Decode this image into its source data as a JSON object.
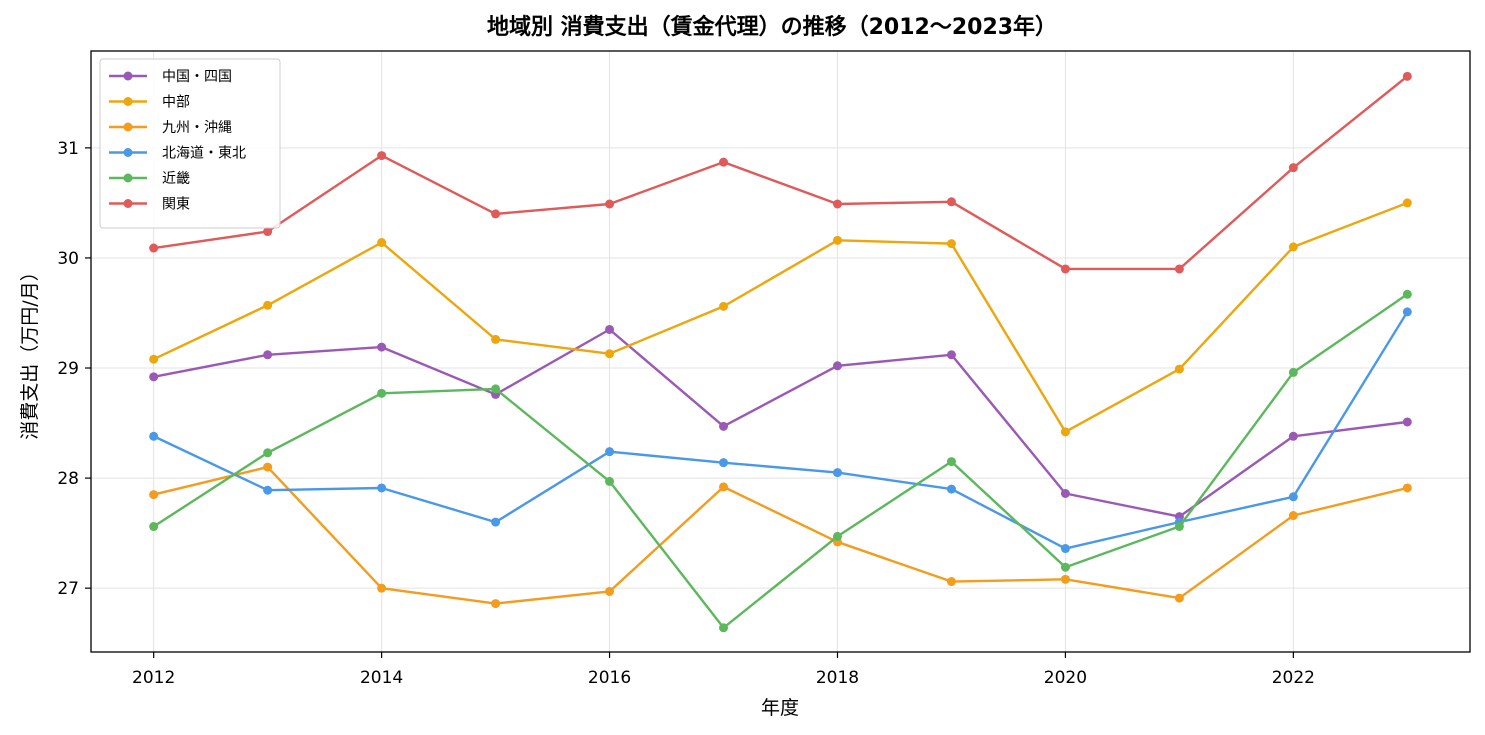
{
  "chart_data": {
    "type": "line",
    "title": "地域別 消費支出（賃金代理）の推移（2012〜2023年）",
    "xlabel": "年度",
    "ylabel": "消費支出（万円/月）",
    "xlim": [
      2011.45,
      2023.55
    ],
    "ylim": [
      26.42,
      31.88
    ],
    "xticks": [
      2012,
      2014,
      2016,
      2018,
      2020,
      2022
    ],
    "yticks": [
      27,
      28,
      29,
      30,
      31
    ],
    "grid": true,
    "legend_position": "top-left",
    "x": [
      2012,
      2013,
      2014,
      2015,
      2016,
      2017,
      2018,
      2019,
      2020,
      2021,
      2022,
      2023
    ],
    "series": [
      {
        "name": "中国・四国",
        "color": "#9b59b6",
        "values": [
          28.92,
          29.12,
          29.19,
          28.76,
          29.35,
          28.47,
          29.02,
          29.12,
          27.86,
          27.65,
          28.38,
          28.51
        ]
      },
      {
        "name": "中部",
        "color": "#eda60c",
        "values": [
          29.08,
          29.57,
          30.14,
          29.26,
          29.13,
          29.56,
          30.16,
          30.13,
          28.42,
          28.99,
          30.1,
          30.5
        ]
      },
      {
        "name": "九州・沖縄",
        "color": "#f39c1d",
        "values": [
          27.85,
          28.1,
          27.0,
          26.86,
          26.97,
          27.92,
          27.42,
          27.06,
          27.08,
          26.91,
          27.66,
          27.91
        ]
      },
      {
        "name": "北海道・東北",
        "color": "#4a98e8",
        "values": [
          28.38,
          27.89,
          27.91,
          27.6,
          28.24,
          28.14,
          28.05,
          27.9,
          27.36,
          27.6,
          27.83,
          29.51
        ]
      },
      {
        "name": "近畿",
        "color": "#5cb85c",
        "values": [
          27.56,
          28.23,
          28.77,
          28.81,
          27.97,
          26.64,
          27.47,
          28.15,
          27.19,
          27.56,
          28.96,
          29.67
        ]
      },
      {
        "name": "関東",
        "color": "#e05a5a",
        "values": [
          30.09,
          30.24,
          30.93,
          30.4,
          30.49,
          30.87,
          30.49,
          30.51,
          29.9,
          29.9,
          30.82,
          31.65
        ]
      }
    ]
  }
}
